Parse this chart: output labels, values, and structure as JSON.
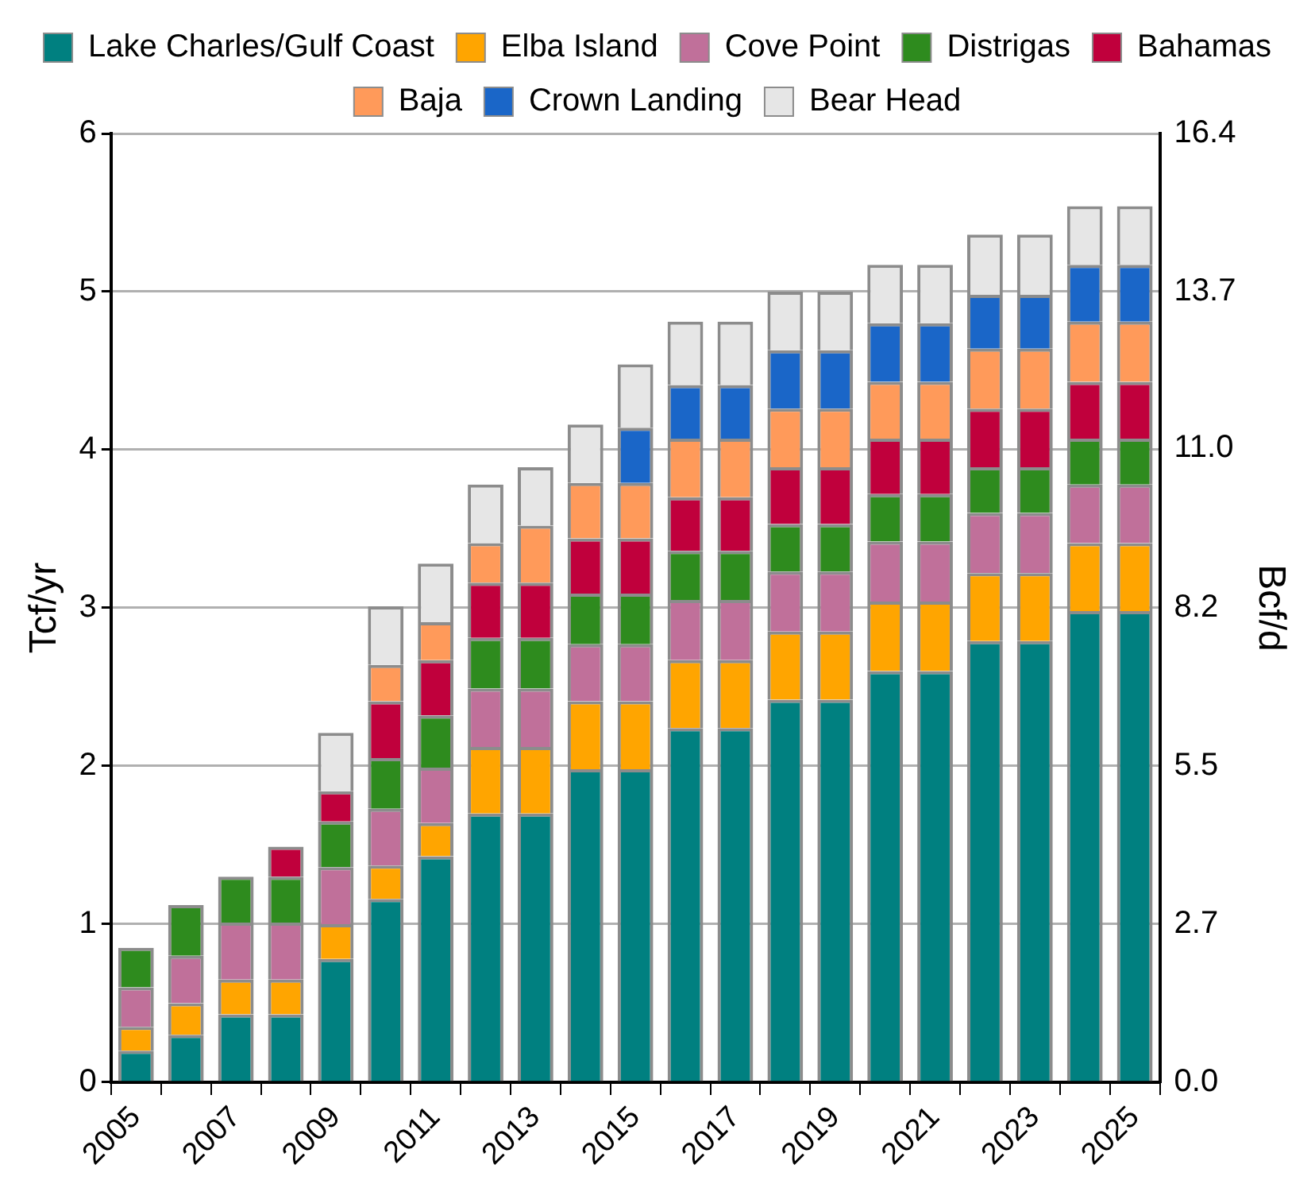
{
  "chart_data": {
    "type": "bar",
    "stacked": true,
    "ylabel": "Tcf/yr",
    "y2label": "Bcf/d",
    "categories": [
      "2005",
      null,
      "2007",
      null,
      "2009",
      null,
      "2011",
      null,
      "2013",
      null,
      "2015",
      null,
      "2017",
      null,
      "2019",
      null,
      "2021",
      null,
      "2023",
      null,
      "2025"
    ],
    "series": [
      {
        "name": "Lake Charles/Gulf Coast",
        "color": "#008080",
        "values": [
          0.2,
          0.3,
          0.43,
          0.43,
          0.78,
          1.16,
          1.43,
          1.7,
          1.7,
          1.98,
          1.98,
          2.24,
          2.24,
          2.42,
          2.42,
          2.6,
          2.6,
          2.79,
          2.79,
          2.98,
          2.98
        ]
      },
      {
        "name": "Elba Island",
        "color": "#ffa500",
        "values": [
          0.15,
          0.2,
          0.22,
          0.22,
          0.22,
          0.21,
          0.21,
          0.42,
          0.42,
          0.43,
          0.43,
          0.43,
          0.43,
          0.43,
          0.43,
          0.44,
          0.44,
          0.43,
          0.43,
          0.43,
          0.43
        ]
      },
      {
        "name": "Cove Point",
        "color": "#c0709a",
        "values": [
          0.25,
          0.3,
          0.36,
          0.36,
          0.36,
          0.36,
          0.35,
          0.37,
          0.37,
          0.36,
          0.36,
          0.38,
          0.38,
          0.38,
          0.38,
          0.38,
          0.38,
          0.38,
          0.38,
          0.37,
          0.37
        ]
      },
      {
        "name": "Distrigas",
        "color": "#2e8b1e",
        "values": [
          0.25,
          0.32,
          0.29,
          0.29,
          0.29,
          0.32,
          0.33,
          0.32,
          0.32,
          0.32,
          0.32,
          0.31,
          0.31,
          0.3,
          0.3,
          0.3,
          0.3,
          0.29,
          0.29,
          0.29,
          0.29
        ]
      },
      {
        "name": "Bahamas",
        "color": "#c0003c",
        "values": [
          null,
          null,
          null,
          0.19,
          0.19,
          0.36,
          0.35,
          0.35,
          0.35,
          0.35,
          0.35,
          0.34,
          0.34,
          0.36,
          0.36,
          0.35,
          0.35,
          0.37,
          0.37,
          0.36,
          0.36
        ]
      },
      {
        "name": "Baja",
        "color": "#ff9a5a",
        "values": [
          null,
          null,
          null,
          null,
          null,
          0.23,
          0.24,
          0.25,
          0.36,
          0.35,
          0.35,
          0.37,
          0.37,
          0.37,
          0.37,
          0.36,
          0.36,
          0.38,
          0.38,
          0.38,
          0.38
        ]
      },
      {
        "name": "Crown Landing",
        "color": "#1a66c8",
        "values": [
          null,
          null,
          null,
          null,
          null,
          null,
          null,
          null,
          null,
          null,
          0.35,
          0.34,
          0.34,
          0.37,
          0.37,
          0.37,
          0.37,
          0.34,
          0.34,
          0.36,
          0.36
        ]
      },
      {
        "name": "Bear Head",
        "color": "#e6e6e6",
        "values": [
          null,
          null,
          null,
          null,
          0.37,
          0.37,
          0.37,
          0.37,
          0.37,
          0.37,
          0.4,
          0.4,
          0.4,
          0.37,
          0.37,
          0.37,
          0.37,
          0.38,
          0.38,
          0.37,
          0.37
        ]
      }
    ],
    "ylim": [
      0,
      6
    ],
    "yticks": [
      0,
      1,
      2,
      3,
      4,
      5,
      6
    ],
    "y2lim": [
      0,
      16.4
    ],
    "y2ticks": [
      {
        "value": 0,
        "label": "0.0"
      },
      {
        "value": 2.73,
        "label": "2.7"
      },
      {
        "value": 5.47,
        "label": "5.5"
      },
      {
        "value": 8.2,
        "label": "8.2"
      },
      {
        "value": 10.96,
        "label": "11.0"
      },
      {
        "value": 13.67,
        "label": "13.7"
      },
      {
        "value": 16.4,
        "label": "16.4"
      }
    ],
    "grid": "y",
    "legend": "top"
  }
}
